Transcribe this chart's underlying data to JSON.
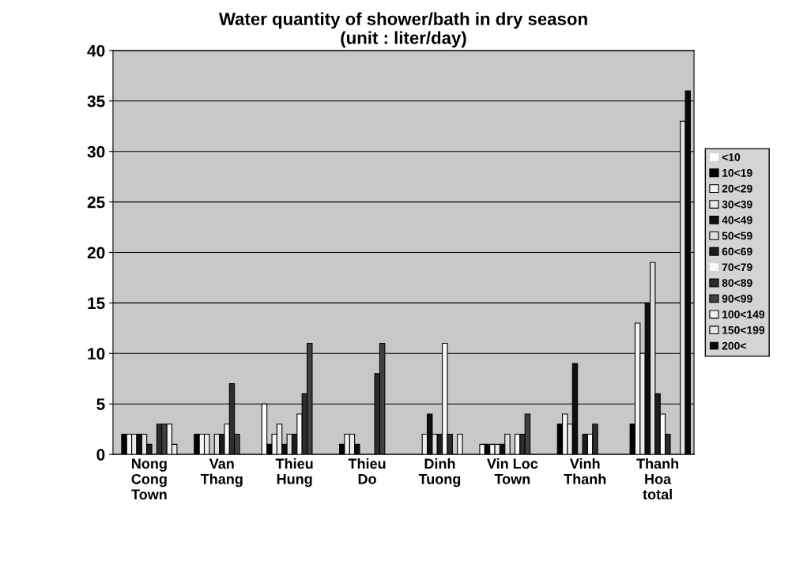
{
  "chart_data": {
    "type": "bar",
    "title": "Water quantity of shower/bath in dry season\n(unit : liter/day)",
    "categories": [
      "Nong\nCong\nTown",
      "Van\nThang",
      "Thieu\nHung",
      "Thieu\nDo",
      "Dinh\nTuong",
      "Vin Loc\nTown",
      "Vinh\nThanh",
      "Thanh\nHoa\ntotal"
    ],
    "series": [
      {
        "name": "<10",
        "color": "#ffffff",
        "values": [
          0,
          0,
          5,
          0,
          0,
          1,
          0,
          0
        ]
      },
      {
        "name": "10<19",
        "color": "#000000",
        "values": [
          2,
          2,
          1,
          1,
          0,
          1,
          3,
          3
        ]
      },
      {
        "name": "20<29",
        "color": "#f5f5f5",
        "values": [
          2,
          2,
          2,
          2,
          0,
          1,
          4,
          13
        ]
      },
      {
        "name": "30<39",
        "color": "#ebebeb",
        "values": [
          2,
          2,
          3,
          2,
          2,
          1,
          3,
          10
        ]
      },
      {
        "name": "40<49",
        "color": "#0f0f0f",
        "values": [
          2,
          0,
          1,
          1,
          4,
          1,
          9,
          15
        ]
      },
      {
        "name": "50<59",
        "color": "#e0e0e0",
        "values": [
          2,
          2,
          2,
          0,
          2,
          2,
          0,
          19
        ]
      },
      {
        "name": "60<69",
        "color": "#1e1e1e",
        "values": [
          1,
          2,
          2,
          0,
          2,
          0,
          2,
          6
        ]
      },
      {
        "name": "70<79",
        "color": "#fafafa",
        "values": [
          0,
          3,
          4,
          0,
          11,
          2,
          2,
          4
        ]
      },
      {
        "name": "80<89",
        "color": "#2d2d2d",
        "values": [
          3,
          7,
          6,
          8,
          2,
          2,
          3,
          2
        ]
      },
      {
        "name": "90<99",
        "color": "#404040",
        "values": [
          3,
          2,
          11,
          11,
          0,
          4,
          0,
          0
        ]
      },
      {
        "name": "100<149",
        "color": "#f0f0f0",
        "values": [
          3,
          0,
          0,
          0,
          2,
          0,
          0,
          0
        ]
      },
      {
        "name": "150<199",
        "color": "#e6e6e6",
        "values": [
          1,
          0,
          0,
          0,
          0,
          0,
          0,
          33
        ]
      },
      {
        "name": "200<",
        "color": "#0a0a0a",
        "values": [
          0,
          0,
          0,
          0,
          0,
          0,
          0,
          36
        ]
      }
    ],
    "ylim": [
      0,
      40
    ],
    "yticks": [
      0,
      5,
      10,
      15,
      20,
      25,
      30,
      35,
      40
    ],
    "grid": "y",
    "legend": "right"
  }
}
